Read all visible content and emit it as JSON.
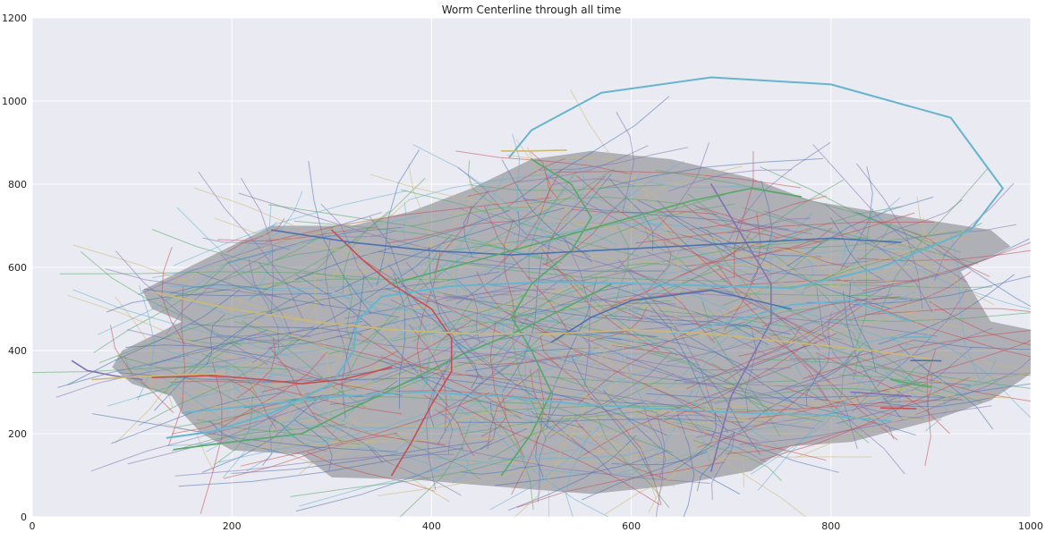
{
  "chart_data": {
    "type": "line",
    "title": "Worm Centerline through all time",
    "xlabel": "",
    "ylabel": "",
    "xlim": [
      0,
      1000
    ],
    "ylim": [
      0,
      1200
    ],
    "x_ticks": [
      0,
      200,
      400,
      600,
      800,
      1000
    ],
    "y_ticks": [
      0,
      200,
      400,
      600,
      800,
      1000,
      1200
    ],
    "grid": true,
    "legend": "none",
    "colors": {
      "background": "#eaeaf2",
      "grid": "#ffffff",
      "palette": [
        "#4c72b0",
        "#55a868",
        "#c44e52",
        "#8172b2",
        "#ccb974",
        "#64b5cd"
      ],
      "cloud": "#7d7d85"
    },
    "series": [
      {
        "values": [
          [
            478,
            865
          ],
          [
            500,
            930
          ],
          [
            570,
            1020
          ],
          [
            680,
            1057
          ],
          [
            800,
            1040
          ],
          [
            920,
            960
          ],
          [
            972,
            790
          ],
          [
            940,
            690
          ],
          [
            850,
            600
          ],
          [
            760,
            550
          ],
          [
            620,
            560
          ],
          [
            520,
            565
          ],
          [
            420,
            555
          ],
          [
            350,
            530
          ],
          [
            325,
            470
          ],
          [
            322,
            400
          ],
          [
            300,
            320
          ],
          [
            240,
            250
          ],
          [
            180,
            205
          ],
          [
            135,
            190
          ]
        ]
      },
      {
        "values": [
          [
            142,
            162
          ],
          [
            200,
            180
          ],
          [
            270,
            200
          ],
          [
            320,
            260
          ],
          [
            380,
            330
          ],
          [
            430,
            390
          ],
          [
            490,
            450
          ],
          [
            540,
            510
          ],
          [
            580,
            560
          ]
        ]
      },
      {
        "values": [
          [
            120,
            335
          ],
          [
            180,
            340
          ],
          [
            230,
            330
          ],
          [
            270,
            320
          ],
          [
            310,
            330
          ],
          [
            360,
            360
          ]
        ]
      },
      {
        "values": [
          [
            40,
            375
          ],
          [
            55,
            352
          ],
          [
            80,
            340
          ],
          [
            110,
            330
          ]
        ]
      },
      {
        "values": [
          [
            60,
            330
          ],
          [
            90,
            335
          ],
          [
            130,
            340
          ],
          [
            190,
            345
          ]
        ]
      },
      {
        "values": [
          [
            860,
            430
          ],
          [
            880,
            432
          ],
          [
            900,
            432
          ]
        ]
      },
      {
        "values": [
          [
            880,
            376
          ],
          [
            900,
            376
          ],
          [
            910,
            375
          ]
        ]
      },
      {
        "values": [
          [
            860,
            330
          ],
          [
            880,
            320
          ],
          [
            900,
            312
          ]
        ]
      },
      {
        "values": [
          [
            850,
            262
          ],
          [
            870,
            261
          ],
          [
            885,
            260
          ]
        ]
      },
      {
        "values": [
          [
            820,
            300
          ],
          [
            850,
            295
          ],
          [
            880,
            290
          ]
        ]
      },
      {
        "values": [
          [
            470,
            880
          ],
          [
            500,
            880
          ],
          [
            535,
            882
          ]
        ]
      },
      {
        "values": [
          [
            640,
            440
          ],
          [
            700,
            470
          ],
          [
            760,
            510
          ],
          [
            820,
            520
          ],
          [
            880,
            470
          ]
        ]
      },
      {
        "values": [
          [
            520,
            420
          ],
          [
            560,
            480
          ],
          [
            600,
            520
          ],
          [
            680,
            545
          ],
          [
            760,
            500
          ]
        ]
      },
      {
        "values": [
          [
            500,
            860
          ],
          [
            540,
            800
          ],
          [
            560,
            720
          ],
          [
            540,
            640
          ],
          [
            500,
            560
          ],
          [
            480,
            480
          ],
          [
            500,
            400
          ],
          [
            520,
            300
          ],
          [
            500,
            200
          ],
          [
            470,
            100
          ]
        ]
      },
      {
        "values": [
          [
            300,
            690
          ],
          [
            330,
            620
          ],
          [
            360,
            560
          ],
          [
            400,
            500
          ],
          [
            420,
            430
          ],
          [
            420,
            350
          ],
          [
            400,
            270
          ],
          [
            380,
            180
          ],
          [
            360,
            100
          ]
        ]
      },
      {
        "values": [
          [
            680,
            800
          ],
          [
            700,
            720
          ],
          [
            720,
            640
          ],
          [
            740,
            560
          ],
          [
            740,
            470
          ],
          [
            720,
            380
          ],
          [
            700,
            290
          ],
          [
            690,
            200
          ],
          [
            680,
            110
          ]
        ]
      },
      {
        "values": [
          [
            120,
            540
          ],
          [
            200,
            500
          ],
          [
            280,
            470
          ],
          [
            360,
            450
          ],
          [
            440,
            440
          ],
          [
            520,
            440
          ],
          [
            600,
            450
          ],
          [
            680,
            440
          ],
          [
            760,
            420
          ],
          [
            840,
            400
          ],
          [
            900,
            380
          ]
        ]
      },
      {
        "values": [
          [
            150,
            250
          ],
          [
            230,
            270
          ],
          [
            310,
            290
          ],
          [
            390,
            300
          ],
          [
            470,
            290
          ],
          [
            550,
            270
          ],
          [
            630,
            260
          ],
          [
            710,
            250
          ],
          [
            790,
            245
          ],
          [
            860,
            230
          ]
        ]
      },
      {
        "values": [
          [
            240,
            690
          ],
          [
            320,
            660
          ],
          [
            400,
            640
          ],
          [
            480,
            630
          ],
          [
            560,
            640
          ],
          [
            640,
            650
          ],
          [
            720,
            660
          ],
          [
            800,
            670
          ],
          [
            870,
            660
          ]
        ]
      },
      {
        "values": [
          [
            360,
            560
          ],
          [
            420,
            600
          ],
          [
            480,
            640
          ],
          [
            540,
            680
          ],
          [
            600,
            720
          ],
          [
            660,
            760
          ],
          [
            720,
            790
          ],
          [
            770,
            770
          ]
        ]
      }
    ]
  }
}
